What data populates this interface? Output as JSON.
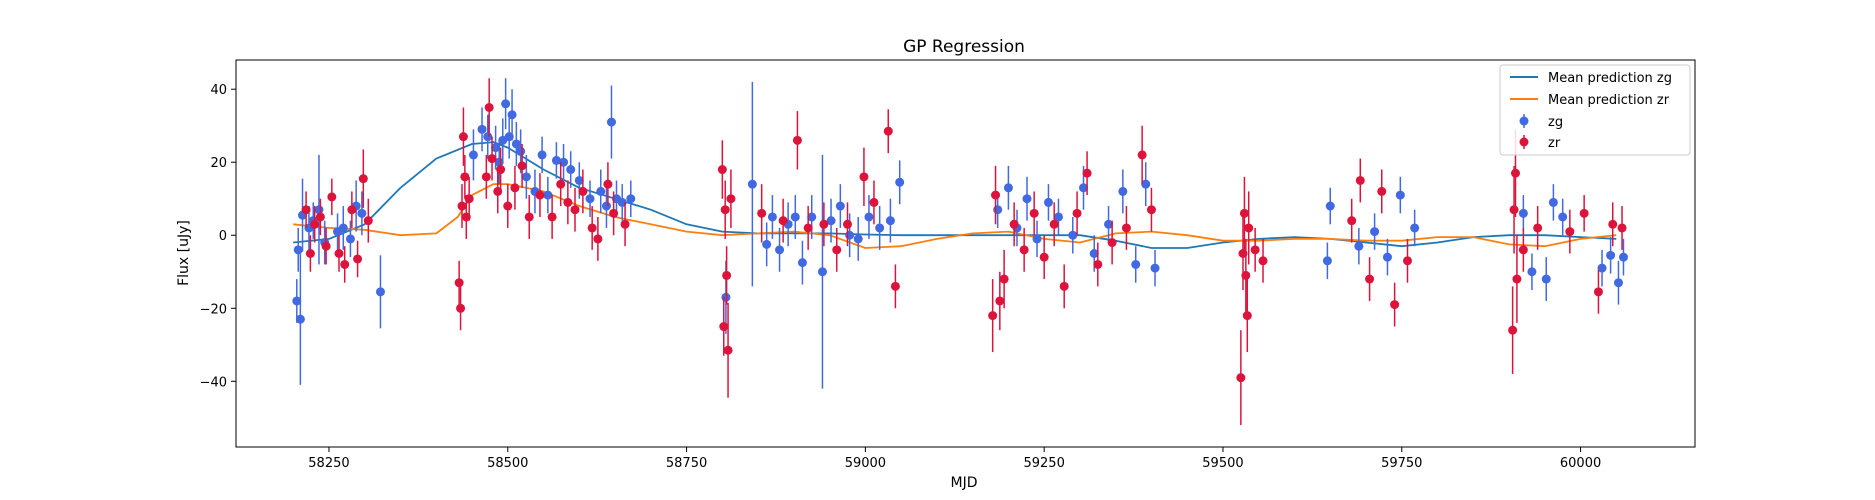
{
  "chart_data": {
    "type": "scatter",
    "title": "GP Regression",
    "xlabel": "MJD",
    "ylabel": "Flux [uJy]",
    "xlim": [
      58120,
      60160
    ],
    "ylim": [
      -58,
      48
    ],
    "xticks": [
      58250,
      58500,
      58750,
      59000,
      59250,
      59500,
      59750,
      60000
    ],
    "yticks": [
      -40,
      -20,
      0,
      20,
      40
    ],
    "legend_position": "top-right",
    "legend": [
      "Mean prediction zg",
      "Mean prediction zr",
      "zg",
      "zr"
    ],
    "colors": {
      "line_zg": "#1f77b4",
      "line_zr": "#ff7f0e",
      "points_zg": "#4169e1",
      "points_zr": "#dc143c"
    },
    "mean_prediction_zg": {
      "x": [
        58200,
        58250,
        58300,
        58350,
        58400,
        58450,
        58480,
        58500,
        58550,
        58600,
        58650,
        58700,
        58750,
        58800,
        58850,
        58900,
        58950,
        59000,
        59050,
        59100,
        59150,
        59200,
        59250,
        59300,
        59350,
        59400,
        59450,
        59500,
        59550,
        59600,
        59650,
        59700,
        59750,
        59800,
        59850,
        59900,
        59950,
        60000,
        60050
      ],
      "y": [
        -2,
        -1,
        3,
        13,
        21,
        25,
        25.5,
        24,
        18,
        13,
        10,
        7,
        3,
        1,
        0.5,
        0.5,
        0.5,
        0.2,
        0,
        0,
        0,
        0,
        0,
        0,
        -1.5,
        -3.5,
        -3.5,
        -2,
        -1,
        -0.5,
        -1,
        -2,
        -3,
        -2,
        -0.5,
        0,
        0,
        -0.5,
        -1
      ]
    },
    "mean_prediction_zr": {
      "x": [
        58200,
        58250,
        58300,
        58350,
        58400,
        58430,
        58450,
        58480,
        58500,
        58550,
        58600,
        58650,
        58700,
        58750,
        58800,
        58850,
        58900,
        58950,
        59000,
        59050,
        59100,
        59150,
        59200,
        59250,
        59300,
        59350,
        59400,
        59450,
        59500,
        59550,
        59600,
        59650,
        59700,
        59750,
        59800,
        59850,
        59900,
        59950,
        60000,
        60050
      ],
      "y": [
        3,
        2,
        1.5,
        0,
        0.5,
        5,
        11,
        14,
        14,
        12,
        8,
        5,
        3,
        1,
        0,
        0.5,
        1,
        0,
        -3.5,
        -3,
        -1,
        0.5,
        1,
        -1,
        -2,
        0.5,
        1,
        0,
        -1.5,
        -1.5,
        -1,
        -1,
        -1.5,
        -1.5,
        -0.5,
        -0.5,
        -2.5,
        -3,
        -1,
        0
      ]
    },
    "series": [
      {
        "name": "zg",
        "marker": "circle",
        "points": [
          [
            58205,
            -18,
            6
          ],
          [
            58207,
            -4,
            6
          ],
          [
            58210,
            -23,
            18
          ],
          [
            58213,
            5.5,
            10
          ],
          [
            58222,
            2,
            6
          ],
          [
            58228,
            4,
            5
          ],
          [
            58236,
            7,
            15
          ],
          [
            58244,
            -2,
            6
          ],
          [
            58262,
            1,
            5
          ],
          [
            58270,
            2,
            6
          ],
          [
            58280,
            -1,
            5
          ],
          [
            58288,
            8,
            7
          ],
          [
            58296,
            6,
            6
          ],
          [
            58322,
            -15.5,
            10
          ],
          [
            58452,
            22,
            7
          ],
          [
            58464,
            29,
            6
          ],
          [
            58472,
            27,
            6
          ],
          [
            58483,
            24,
            6
          ],
          [
            58488,
            20,
            6
          ],
          [
            58493,
            26,
            6
          ],
          [
            58497,
            36,
            7
          ],
          [
            58502,
            27,
            6
          ],
          [
            58506,
            33,
            7
          ],
          [
            58512,
            25,
            6
          ],
          [
            58518,
            23,
            6
          ],
          [
            58526,
            16,
            6
          ],
          [
            58538,
            12,
            6
          ],
          [
            58548,
            22,
            5
          ],
          [
            58556,
            11,
            5
          ],
          [
            58568,
            20.5,
            5
          ],
          [
            58578,
            20,
            5
          ],
          [
            58588,
            18,
            5
          ],
          [
            58600,
            15,
            5
          ],
          [
            58615,
            10,
            5
          ],
          [
            58630,
            12,
            6
          ],
          [
            58638,
            8,
            6
          ],
          [
            58645,
            31,
            10
          ],
          [
            58652,
            10,
            5
          ],
          [
            58660,
            9,
            5
          ],
          [
            58672,
            10,
            5
          ],
          [
            58805,
            -17,
            10
          ],
          [
            58842,
            14,
            28
          ],
          [
            58862,
            -2.5,
            6
          ],
          [
            58870,
            5,
            6
          ],
          [
            58880,
            -4,
            6
          ],
          [
            58892,
            3,
            6
          ],
          [
            58902,
            5,
            6
          ],
          [
            58912,
            -7.5,
            6
          ],
          [
            58925,
            5,
            6
          ],
          [
            58940,
            -10,
            32
          ],
          [
            58952,
            4,
            6
          ],
          [
            58965,
            8,
            6
          ],
          [
            58978,
            0,
            6
          ],
          [
            58990,
            -1,
            6
          ],
          [
            59005,
            5,
            6
          ],
          [
            59020,
            2,
            6
          ],
          [
            59035,
            4,
            6
          ],
          [
            59048,
            14.5,
            6
          ],
          [
            59185,
            7,
            5
          ],
          [
            59200,
            13,
            6
          ],
          [
            59212,
            2,
            5
          ],
          [
            59226,
            10,
            6
          ],
          [
            59240,
            -1,
            5
          ],
          [
            59256,
            9,
            5
          ],
          [
            59270,
            5,
            5
          ],
          [
            59290,
            0,
            5
          ],
          [
            59305,
            13,
            6
          ],
          [
            59320,
            -5,
            5
          ],
          [
            59340,
            3,
            5
          ],
          [
            59360,
            12,
            6
          ],
          [
            59378,
            -8,
            5
          ],
          [
            59392,
            14,
            6
          ],
          [
            59405,
            -9,
            5
          ],
          [
            59646,
            -7,
            5
          ],
          [
            59650,
            8,
            5
          ],
          [
            59690,
            -3,
            5
          ],
          [
            59712,
            1,
            5
          ],
          [
            59730,
            -6,
            5
          ],
          [
            59748,
            11,
            5
          ],
          [
            59768,
            2,
            5
          ],
          [
            59920,
            6,
            5
          ],
          [
            59932,
            -10,
            5
          ],
          [
            59952,
            -12,
            6
          ],
          [
            59962,
            9,
            5
          ],
          [
            59975,
            5,
            5
          ],
          [
            60030,
            -9,
            5
          ],
          [
            60042,
            -5.5,
            5
          ],
          [
            60053,
            -13,
            6
          ],
          [
            60060,
            -6,
            5
          ]
        ]
      },
      {
        "name": "zr",
        "marker": "circle",
        "points": [
          [
            58218,
            7,
            5
          ],
          [
            58224,
            -5,
            5
          ],
          [
            58230,
            3,
            5
          ],
          [
            58238,
            5,
            5
          ],
          [
            58246,
            -3,
            5
          ],
          [
            58254,
            10.5,
            5
          ],
          [
            58264,
            -5,
            5
          ],
          [
            58272,
            -8,
            5
          ],
          [
            58282,
            7,
            5
          ],
          [
            58290,
            -6.5,
            5
          ],
          [
            58298,
            15.5,
            8
          ],
          [
            58305,
            4,
            6
          ],
          [
            58432,
            -13,
            6
          ],
          [
            58434,
            -20,
            6
          ],
          [
            58436,
            8,
            6
          ],
          [
            58438,
            27,
            8
          ],
          [
            58440,
            16,
            6
          ],
          [
            58442,
            5,
            6
          ],
          [
            58446,
            10,
            6
          ],
          [
            58470,
            16,
            6
          ],
          [
            58474,
            35,
            8
          ],
          [
            58478,
            21,
            6
          ],
          [
            58486,
            12,
            6
          ],
          [
            58490,
            18,
            6
          ],
          [
            58500,
            8,
            6
          ],
          [
            58510,
            13,
            6
          ],
          [
            58520,
            19,
            6
          ],
          [
            58530,
            5,
            6
          ],
          [
            58545,
            11,
            6
          ],
          [
            58562,
            5,
            6
          ],
          [
            58574,
            14,
            6
          ],
          [
            58584,
            9,
            6
          ],
          [
            58594,
            7,
            6
          ],
          [
            58605,
            12,
            6
          ],
          [
            58618,
            2,
            6
          ],
          [
            58626,
            -1,
            6
          ],
          [
            58640,
            14,
            6
          ],
          [
            58648,
            6,
            6
          ],
          [
            58664,
            3,
            6
          ],
          [
            58800,
            18,
            8
          ],
          [
            58802,
            -25,
            8
          ],
          [
            58804,
            7,
            8
          ],
          [
            58806,
            -11,
            8
          ],
          [
            58808,
            -31.5,
            13
          ],
          [
            58812,
            10,
            8
          ],
          [
            58855,
            6,
            8
          ],
          [
            58885,
            4,
            6
          ],
          [
            58905,
            26,
            8
          ],
          [
            58920,
            2,
            6
          ],
          [
            58942,
            3,
            6
          ],
          [
            58960,
            -4,
            6
          ],
          [
            58975,
            3,
            6
          ],
          [
            58998,
            16,
            8
          ],
          [
            59012,
            9,
            6
          ],
          [
            59032,
            28.5,
            6
          ],
          [
            59042,
            -14,
            6
          ],
          [
            59178,
            -22,
            10
          ],
          [
            59182,
            11,
            8
          ],
          [
            59188,
            -18,
            8
          ],
          [
            59194,
            -12,
            8
          ],
          [
            59208,
            3,
            6
          ],
          [
            59222,
            -4,
            6
          ],
          [
            59236,
            6,
            6
          ],
          [
            59250,
            -6,
            6
          ],
          [
            59264,
            3,
            6
          ],
          [
            59278,
            -14,
            6
          ],
          [
            59296,
            6,
            6
          ],
          [
            59310,
            17,
            6
          ],
          [
            59325,
            -8,
            6
          ],
          [
            59345,
            -2,
            6
          ],
          [
            59365,
            2,
            6
          ],
          [
            59387,
            22,
            8
          ],
          [
            59400,
            7,
            6
          ],
          [
            59525,
            -39,
            13
          ],
          [
            59528,
            -5,
            10
          ],
          [
            59530,
            6,
            10
          ],
          [
            59532,
            -11,
            10
          ],
          [
            59534,
            -22,
            10
          ],
          [
            59536,
            2,
            10
          ],
          [
            59545,
            -4,
            6
          ],
          [
            59556,
            -7,
            6
          ],
          [
            59680,
            4,
            6
          ],
          [
            59692,
            15,
            6
          ],
          [
            59705,
            -12,
            6
          ],
          [
            59722,
            12,
            6
          ],
          [
            59740,
            -19,
            6
          ],
          [
            59758,
            -7,
            6
          ],
          [
            59905,
            -26,
            12
          ],
          [
            59907,
            7,
            12
          ],
          [
            59909,
            17,
            12
          ],
          [
            59911,
            -12,
            12
          ],
          [
            59920,
            -4,
            6
          ],
          [
            59940,
            2,
            6
          ],
          [
            59985,
            1,
            6
          ],
          [
            60005,
            6,
            5
          ],
          [
            60025,
            -15.5,
            6
          ],
          [
            60045,
            3,
            6
          ],
          [
            60058,
            2,
            6
          ]
        ]
      }
    ]
  }
}
